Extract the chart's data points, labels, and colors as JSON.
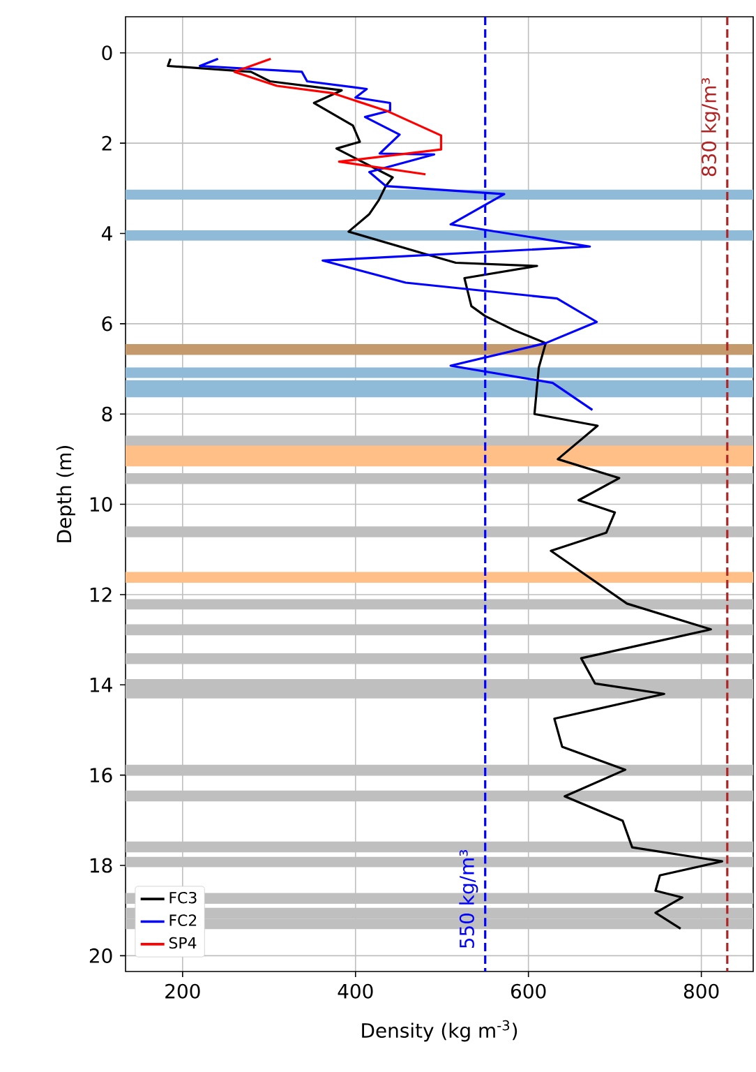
{
  "chart_data": {
    "type": "line",
    "xlabel": "Density (kg m$^{-3}$)",
    "ylabel": "Depth (m)",
    "xlim": [
      134,
      860
    ],
    "ylim": [
      20.35,
      -0.8
    ],
    "xticks": [
      200,
      400,
      600,
      800
    ],
    "yticks": [
      0,
      2,
      4,
      6,
      8,
      10,
      12,
      14,
      16,
      18,
      20
    ],
    "grid": true,
    "legend": "bottom left",
    "series": [
      {
        "name": "FC3",
        "color": "#000000",
        "x": [
          186,
          183,
          279,
          301,
          384,
          352,
          397,
          405,
          378,
          443,
          435,
          427,
          416,
          392,
          478,
          516,
          610,
          526,
          534,
          550,
          583,
          620,
          612,
          607,
          680,
          634,
          705,
          658,
          700,
          690,
          626,
          714,
          811,
          661,
          677,
          757,
          630,
          639,
          712,
          642,
          709,
          720,
          824,
          752,
          747,
          778,
          747,
          776
        ],
        "values": [
          0.13,
          0.29,
          0.42,
          0.63,
          0.83,
          1.11,
          1.61,
          1.97,
          2.12,
          2.76,
          2.95,
          3.26,
          3.57,
          3.96,
          4.44,
          4.65,
          4.72,
          4.99,
          5.61,
          5.83,
          6.14,
          6.43,
          6.97,
          8.0,
          8.26,
          9.0,
          9.42,
          9.91,
          10.18,
          10.63,
          11.03,
          12.2,
          12.77,
          13.41,
          13.97,
          14.2,
          14.75,
          15.37,
          15.88,
          16.47,
          17.01,
          17.6,
          17.91,
          18.22,
          18.56,
          18.71,
          19.05,
          19.4
        ]
      },
      {
        "name": "FC2",
        "color": "#0000ff",
        "x": [
          241,
          220,
          338,
          344,
          413,
          400,
          440,
          440,
          411,
          451,
          428,
          491,
          416,
          435,
          572,
          510,
          671,
          362,
          458,
          633,
          679,
          620,
          510,
          628,
          674
        ],
        "values": [
          0.13,
          0.29,
          0.42,
          0.63,
          0.8,
          0.99,
          1.11,
          1.28,
          1.42,
          1.81,
          2.23,
          2.25,
          2.64,
          2.95,
          3.13,
          3.8,
          4.29,
          4.6,
          5.09,
          5.44,
          5.96,
          6.43,
          6.93,
          7.31,
          7.91
        ]
      },
      {
        "name": "SP4",
        "color": "#ff0000",
        "x": [
          302,
          260,
          309,
          373,
          438,
          499,
          499,
          381,
          481
        ],
        "values": [
          0.13,
          0.42,
          0.73,
          0.89,
          1.3,
          1.83,
          2.14,
          2.41,
          2.69
        ]
      }
    ],
    "ref_lines": [
      {
        "axis": "x",
        "value": 550,
        "label": "550 kg/m³",
        "color": "#0000ff",
        "line_style": "dashed"
      },
      {
        "axis": "x",
        "value": 830,
        "label": "830 kg/m³",
        "color": "#b22222",
        "line_style": "dashed"
      }
    ],
    "bands": [
      {
        "axis": "y",
        "from": 3.03,
        "to": 3.25,
        "color": "#8fbbd9"
      },
      {
        "axis": "y",
        "from": 3.93,
        "to": 4.16,
        "color": "#8fbbd9"
      },
      {
        "axis": "y",
        "from": 6.45,
        "to": 6.69,
        "color": "#c49a6c"
      },
      {
        "axis": "y",
        "from": 6.97,
        "to": 7.2,
        "color": "#8fbbd9"
      },
      {
        "axis": "y",
        "from": 7.25,
        "to": 7.48,
        "color": "#8fbbd9"
      },
      {
        "axis": "y",
        "from": 7.4,
        "to": 7.63,
        "color": "#8fbbd9"
      },
      {
        "axis": "y",
        "from": 8.48,
        "to": 8.72,
        "color": "#bfbfbf"
      },
      {
        "axis": "y",
        "from": 8.7,
        "to": 9.0,
        "color": "#ffbf86"
      },
      {
        "axis": "y",
        "from": 8.93,
        "to": 9.16,
        "color": "#ffbf86"
      },
      {
        "axis": "y",
        "from": 9.31,
        "to": 9.55,
        "color": "#bfbfbf"
      },
      {
        "axis": "y",
        "from": 10.49,
        "to": 10.73,
        "color": "#bfbfbf"
      },
      {
        "axis": "y",
        "from": 11.5,
        "to": 11.74,
        "color": "#ffbf86"
      },
      {
        "axis": "y",
        "from": 12.1,
        "to": 12.33,
        "color": "#bfbfbf"
      },
      {
        "axis": "y",
        "from": 12.66,
        "to": 12.9,
        "color": "#bfbfbf"
      },
      {
        "axis": "y",
        "from": 13.3,
        "to": 13.54,
        "color": "#bfbfbf"
      },
      {
        "axis": "y",
        "from": 13.87,
        "to": 14.1,
        "color": "#bfbfbf"
      },
      {
        "axis": "y",
        "from": 14.07,
        "to": 14.3,
        "color": "#bfbfbf"
      },
      {
        "axis": "y",
        "from": 15.77,
        "to": 16.0,
        "color": "#bfbfbf"
      },
      {
        "axis": "y",
        "from": 16.34,
        "to": 16.58,
        "color": "#bfbfbf"
      },
      {
        "axis": "y",
        "from": 17.47,
        "to": 17.71,
        "color": "#bfbfbf"
      },
      {
        "axis": "y",
        "from": 17.81,
        "to": 18.04,
        "color": "#bfbfbf"
      },
      {
        "axis": "y",
        "from": 18.61,
        "to": 18.85,
        "color": "#bfbfbf"
      },
      {
        "axis": "y",
        "from": 18.94,
        "to": 19.18,
        "color": "#bfbfbf"
      },
      {
        "axis": "y",
        "from": 19.18,
        "to": 19.41,
        "color": "#bfbfbf"
      }
    ]
  }
}
